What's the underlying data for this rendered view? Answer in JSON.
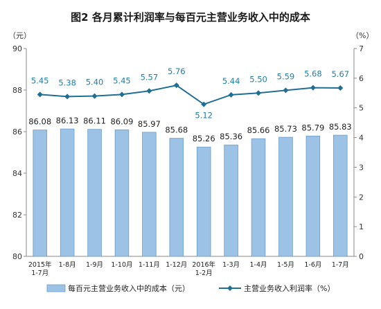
{
  "chart_data": {
    "type": "bar+line",
    "title": "图2  各月累计利润率与每百元主营业务收入中的成本",
    "categories": [
      [
        "2015年",
        "1-7月"
      ],
      [
        "1-8月"
      ],
      [
        "1-9月"
      ],
      [
        "1-10月"
      ],
      [
        "1-11月"
      ],
      [
        "1-12月"
      ],
      [
        "2016年",
        "1-2月"
      ],
      [
        "1-3月"
      ],
      [
        "1-4月"
      ],
      [
        "1-5月"
      ],
      [
        "1-6月"
      ],
      [
        "1-7月"
      ]
    ],
    "left_axis": {
      "unit": "（元）",
      "min": 80,
      "max": 90,
      "ticks": [
        80,
        82,
        84,
        86,
        88,
        90
      ]
    },
    "right_axis": {
      "unit": "（%）",
      "min": 0,
      "max": 7,
      "ticks": [
        0,
        1,
        2,
        3,
        4,
        5,
        6,
        7
      ]
    },
    "series": [
      {
        "name": "每百元主营业务收入中的成本（元）",
        "type": "bar",
        "axis": "left",
        "color": "#9cc3e6",
        "values": [
          86.08,
          86.13,
          86.11,
          86.09,
          85.97,
          85.68,
          85.26,
          85.36,
          85.66,
          85.73,
          85.79,
          85.83
        ]
      },
      {
        "name": "主营业务收入利润率（%）",
        "type": "line",
        "axis": "right",
        "color": "#1f6e94",
        "values": [
          5.45,
          5.38,
          5.4,
          5.45,
          5.57,
          5.76,
          5.12,
          5.44,
          5.5,
          5.59,
          5.68,
          5.67
        ]
      }
    ],
    "legend_position": "bottom",
    "grid": false
  }
}
